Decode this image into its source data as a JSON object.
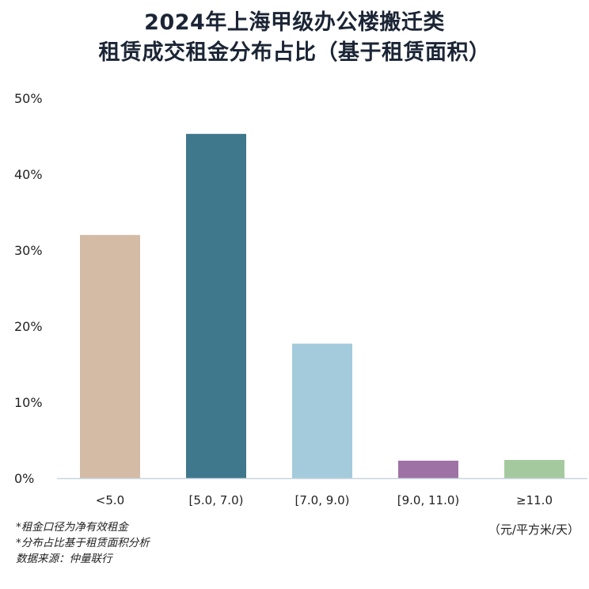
{
  "title": {
    "line1": "2024年上海甲级办公楼搬迁类",
    "line2": "租赁成交租金分布占比（基于租赁面积）"
  },
  "chart_data": {
    "type": "bar",
    "categories": [
      "<5.0",
      "[5.0, 7.0)",
      "[7.0, 9.0)",
      "[9.0, 11.0)",
      "≥11.0"
    ],
    "values": [
      32,
      45.3,
      17.7,
      2.3,
      2.4
    ],
    "colors": [
      "#d3bba6",
      "#3f778c",
      "#a4cbdc",
      "#9e72a4",
      "#a5c99f"
    ],
    "y_ticks": [
      "0%",
      "10%",
      "20%",
      "30%",
      "40%",
      "50%"
    ],
    "ylim": [
      0,
      50
    ],
    "unit_label": "（元/平方米/天）",
    "grid": false
  },
  "notes": [
    "*租金口径为净有效租金",
    "*分布占比基于租赁面积分析",
    "数据来源：仲量联行"
  ]
}
